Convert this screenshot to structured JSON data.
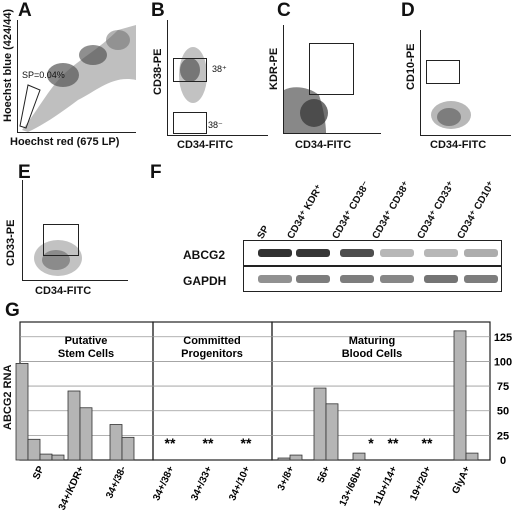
{
  "panels": {
    "A": {
      "letter": "A",
      "ylabel": "Hoechst blue (424/44)",
      "xlabel": "Hoechst red (675 LP)",
      "gate_label": "SP=0.04%"
    },
    "B": {
      "letter": "B",
      "ylabel": "CD38-PE",
      "xlabel": "CD34-FITC",
      "gate_top": "38⁺",
      "gate_bottom": "38⁻"
    },
    "C": {
      "letter": "C",
      "ylabel": "KDR-PE",
      "xlabel": "CD34-FITC"
    },
    "D": {
      "letter": "D",
      "ylabel": "CD10-PE",
      "xlabel": "CD34-FITC"
    },
    "E": {
      "letter": "E",
      "ylabel": "CD33-PE",
      "xlabel": "CD34-FITC"
    },
    "F": {
      "letter": "F",
      "rows": [
        "ABCG2",
        "GAPDH"
      ],
      "lanes": [
        "SP",
        "CD34⁺ KDR⁺",
        "CD34⁺ CD38⁻",
        "CD34⁺ CD38⁺",
        "CD34⁺ CD33⁺",
        "CD34⁺ CD10⁺"
      ],
      "abcg2_intensity": [
        0.95,
        0.92,
        0.8,
        0.25,
        0.25,
        0.3
      ],
      "gapdh_intensity": [
        0.45,
        0.55,
        0.55,
        0.5,
        0.6,
        0.55
      ]
    },
    "G": {
      "letter": "G"
    }
  },
  "chart_data": {
    "type": "bar",
    "ylabel": "ABCG2 RNA",
    "ylim": [
      0,
      140
    ],
    "yticks": [
      0,
      25,
      50,
      75,
      100,
      125
    ],
    "groups": [
      {
        "title": "Putative\nStem Cells"
      },
      {
        "title": "Committed\nProgenitors"
      },
      {
        "title": "Maturing\nBlood Cells"
      }
    ],
    "categories": [
      "SP",
      "34+/KDR+",
      "34+/38-",
      "34+/38+",
      "34+/33+",
      "34+/10+",
      "3+/8+",
      "56+",
      "13+/66b+",
      "11b+/14+",
      "19+/20+",
      "GlyA+"
    ],
    "bars": [
      {
        "category": "SP",
        "values": [
          98,
          21,
          6,
          5
        ]
      },
      {
        "category": "34+/KDR+",
        "values": [
          70,
          53
        ]
      },
      {
        "category": "34+/38-",
        "values": [
          36,
          23
        ]
      },
      {
        "category": "34+/38+",
        "values": [],
        "marker": "**"
      },
      {
        "category": "34+/33+",
        "values": [],
        "marker": "**"
      },
      {
        "category": "34+/10+",
        "values": [],
        "marker": "**"
      },
      {
        "category": "3+/8+",
        "values": [
          2,
          5
        ]
      },
      {
        "category": "56+",
        "values": [
          73,
          57
        ]
      },
      {
        "category": "13+/66b+",
        "values": [
          7
        ],
        "marker": "*"
      },
      {
        "category": "11b+/14+",
        "values": [],
        "marker": "**"
      },
      {
        "category": "19+/20+",
        "values": [],
        "marker": "**"
      },
      {
        "category": "GlyA+",
        "values": [
          131,
          7
        ]
      }
    ],
    "bar_color": "#b5b5b5"
  }
}
